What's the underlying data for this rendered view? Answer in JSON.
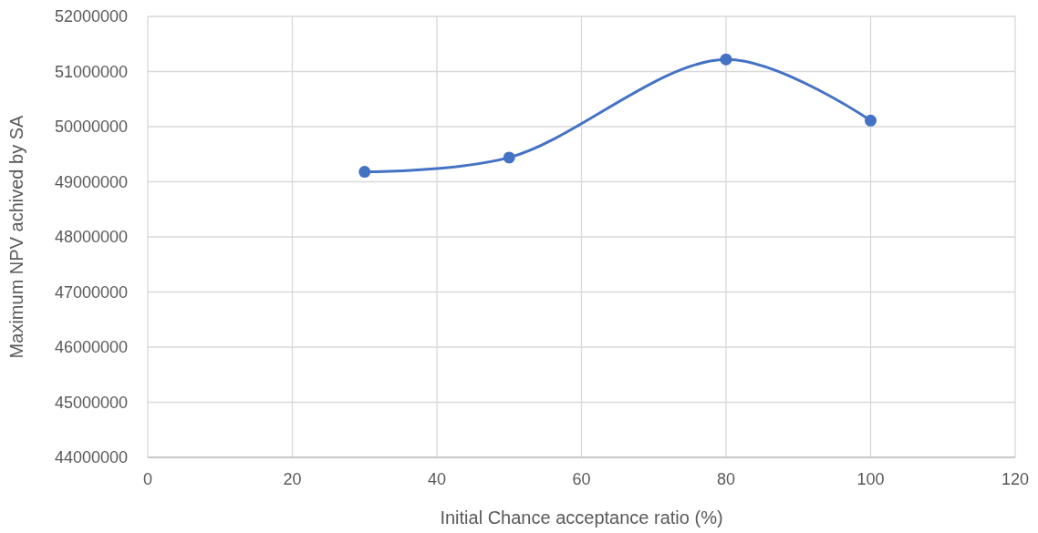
{
  "chart_data": {
    "type": "line",
    "xlabel": "Initial Chance acceptance ratio (%)",
    "ylabel": "Maximum NPV achived by SA",
    "x": [
      30,
      50,
      80,
      100
    ],
    "series": [
      {
        "color": "#4472c4",
        "values": [
          49180000,
          49440000,
          51220000,
          50110000
        ]
      }
    ],
    "xlim": [
      0,
      120
    ],
    "xticks": [
      0,
      20,
      40,
      60,
      80,
      100,
      120
    ],
    "ylim": [
      44000000,
      52000000
    ],
    "yticks": [
      44000000,
      45000000,
      46000000,
      47000000,
      48000000,
      49000000,
      50000000,
      51000000,
      52000000
    ],
    "grid": true,
    "marker": "circle",
    "line_style": "solid"
  }
}
